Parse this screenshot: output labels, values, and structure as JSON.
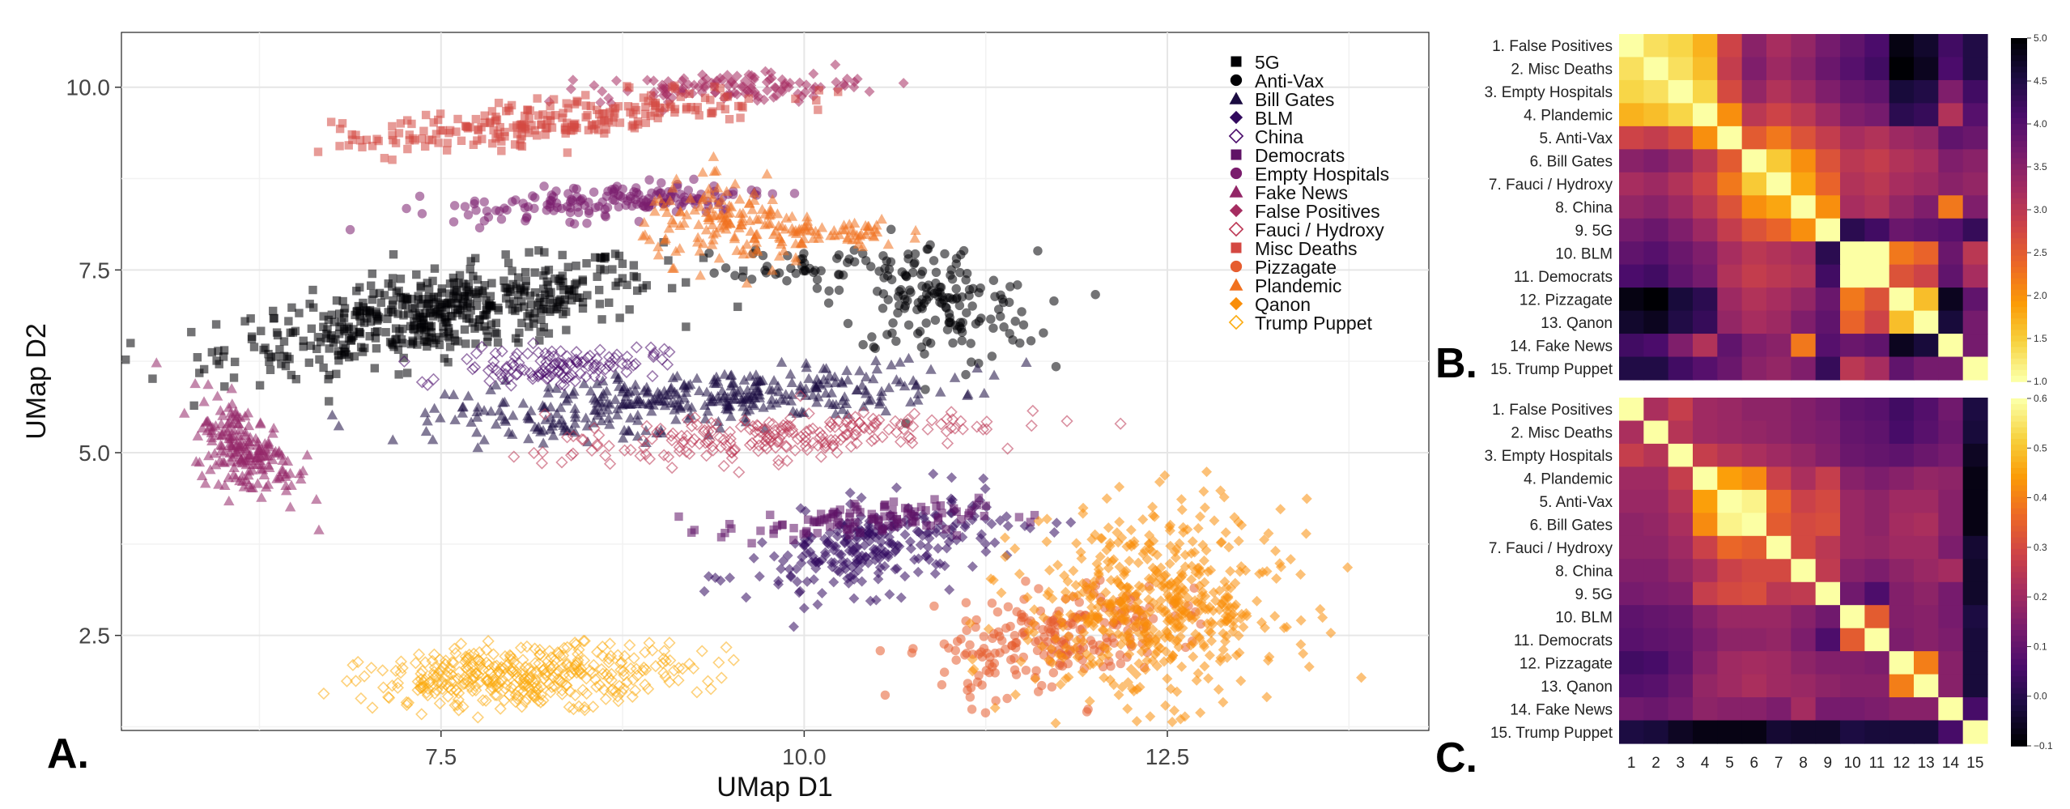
{
  "panel_labels": {
    "a": "A.",
    "b": "B.",
    "c": "C."
  },
  "chart_data": [
    {
      "type": "scatter",
      "xlabel": "UMap D1",
      "ylabel": "UMap D2",
      "xlim": [
        5.3,
        14.3
      ],
      "ylim": [
        1.2,
        10.75
      ],
      "xticks": [
        7.5,
        10.0,
        12.5
      ],
      "yticks": [
        2.5,
        5.0,
        7.5,
        10.0
      ],
      "xtick_labels": [
        "7.5",
        "10.0",
        "12.5"
      ],
      "ytick_labels": [
        "2.5",
        "5.0",
        "7.5",
        "10.0"
      ],
      "grid": true,
      "legend_position": "top-right",
      "series": [
        {
          "name": "5G",
          "marker": "square-filled",
          "color": "#000004",
          "clusters": [
            {
              "cx": 7.5,
              "cy": 6.9,
              "sx": 0.75,
              "sy": 0.28,
              "n": 520,
              "tilt": 0.32
            }
          ]
        },
        {
          "name": "Anti-Vax",
          "marker": "circle-filled",
          "color": "#000004",
          "clusters": [
            {
              "cx": 10.9,
              "cy": 7.05,
              "sx": 0.35,
              "sy": 0.42,
              "n": 170,
              "tilt": -0.2
            },
            {
              "cx": 10.0,
              "cy": 7.6,
              "sx": 0.25,
              "sy": 0.12,
              "n": 40,
              "tilt": 0
            }
          ]
        },
        {
          "name": "Bill Gates",
          "marker": "triangle-filled",
          "color": "#1b0c41",
          "clusters": [
            {
              "cx": 9.3,
              "cy": 5.75,
              "sx": 0.85,
              "sy": 0.18,
              "n": 320,
              "tilt": 0.12
            },
            {
              "cx": 8.3,
              "cy": 5.35,
              "sx": 0.4,
              "sy": 0.1,
              "n": 50,
              "tilt": 0
            }
          ]
        },
        {
          "name": "BLM",
          "marker": "diamond-filled",
          "color": "#320a5e",
          "clusters": [
            {
              "cx": 10.5,
              "cy": 3.7,
              "sx": 0.45,
              "sy": 0.3,
              "n": 260,
              "tilt": 0.35
            }
          ]
        },
        {
          "name": "China",
          "marker": "diamond-open",
          "color": "#4a0c6b",
          "clusters": [
            {
              "cx": 8.3,
              "cy": 6.2,
              "sx": 0.35,
              "sy": 0.12,
              "n": 120,
              "tilt": 0.1
            }
          ]
        },
        {
          "name": "Democrats",
          "marker": "square-filled",
          "color": "#5f1366",
          "clusters": [
            {
              "cx": 10.3,
              "cy": 4.05,
              "sx": 0.45,
              "sy": 0.12,
              "n": 110,
              "tilt": 0.1
            }
          ]
        },
        {
          "name": "Empty Hospitals",
          "marker": "circle-filled",
          "color": "#7a1d6d",
          "clusters": [
            {
              "cx": 8.7,
              "cy": 8.45,
              "sx": 0.55,
              "sy": 0.12,
              "n": 170,
              "tilt": 0.12
            }
          ]
        },
        {
          "name": "Fake News",
          "marker": "triangle-filled",
          "color": "#932667",
          "clusters": [
            {
              "cx": 6.15,
              "cy": 5.05,
              "sx": 0.18,
              "sy": 0.3,
              "n": 190,
              "tilt": -0.9
            }
          ]
        },
        {
          "name": "False Positives",
          "marker": "diamond-filled",
          "color": "#a52c60",
          "clusters": [
            {
              "cx": 9.5,
              "cy": 10.0,
              "sx": 0.45,
              "sy": 0.1,
              "n": 120,
              "tilt": 0.05
            }
          ]
        },
        {
          "name": "Fauci / Hydroxy",
          "marker": "diamond-open",
          "color": "#bc3754",
          "clusters": [
            {
              "cx": 9.7,
              "cy": 5.2,
              "sx": 0.75,
              "sy": 0.15,
              "n": 220,
              "tilt": 0.14
            }
          ]
        },
        {
          "name": "Misc Deaths",
          "marker": "square-filled",
          "color": "#d44842",
          "clusters": [
            {
              "cx": 8.3,
              "cy": 9.55,
              "sx": 0.75,
              "sy": 0.15,
              "n": 240,
              "tilt": 0.22
            }
          ]
        },
        {
          "name": "Pizzagate",
          "marker": "circle-filled",
          "color": "#e65d2f",
          "clusters": [
            {
              "cx": 11.7,
              "cy": 2.45,
              "sx": 0.4,
              "sy": 0.35,
              "n": 230,
              "tilt": 0.4
            }
          ]
        },
        {
          "name": "Plandemic",
          "marker": "triangle-filled",
          "color": "#f1711f",
          "clusters": [
            {
              "cx": 9.5,
              "cy": 8.1,
              "sx": 0.3,
              "sy": 0.28,
              "n": 140,
              "tilt": -0.2
            },
            {
              "cx": 10.2,
              "cy": 8.0,
              "sx": 0.25,
              "sy": 0.1,
              "n": 60,
              "tilt": 0
            }
          ]
        },
        {
          "name": "Qanon",
          "marker": "diamond-filled",
          "color": "#f98e09",
          "clusters": [
            {
              "cx": 12.4,
              "cy": 2.9,
              "sx": 0.45,
              "sy": 0.65,
              "n": 520,
              "tilt": 0.1
            }
          ]
        },
        {
          "name": "Trump Puppet",
          "marker": "diamond-open",
          "color": "#fcac11",
          "clusters": [
            {
              "cx": 8.1,
              "cy": 1.95,
              "sx": 0.55,
              "sy": 0.2,
              "n": 380,
              "tilt": 0.08
            }
          ]
        }
      ]
    },
    {
      "type": "heatmap",
      "row_labels": [
        "1. False Positives",
        "2. Misc Deaths",
        "3. Empty Hospitals",
        "4. Plandemic",
        "5. Anti-Vax",
        "6. Bill Gates",
        "7. Fauci / Hydroxy",
        "8. China",
        "9. 5G",
        "10. BLM",
        "11. Democrats",
        "12. Pizzagate",
        "13. Qanon",
        "14. Fake News",
        "15. Trump Puppet"
      ],
      "col_labels": [],
      "colormap": "inferno_reversed",
      "vmin": 1.0,
      "vmax": 5.0,
      "colorbar_ticks": [
        1.0,
        1.5,
        2.0,
        2.5,
        3.0,
        3.5,
        4.0,
        4.5,
        5.0
      ],
      "colorbar_tick_labels": [
        "1.0",
        "1.5",
        "2.0",
        "2.5",
        "3.0",
        "3.5",
        "4.0",
        "4.5",
        "5.0"
      ],
      "values": [
        [
          1.0,
          1.3,
          1.4,
          1.7,
          2.8,
          3.5,
          3.2,
          3.4,
          3.7,
          3.9,
          4.1,
          4.9,
          4.7,
          4.2,
          4.5
        ],
        [
          1.3,
          1.0,
          1.3,
          1.6,
          2.9,
          3.6,
          3.3,
          3.5,
          3.8,
          4.0,
          4.2,
          5.0,
          4.8,
          4.1,
          4.5
        ],
        [
          1.4,
          1.3,
          1.0,
          1.4,
          2.7,
          3.4,
          3.1,
          3.3,
          3.6,
          3.8,
          3.9,
          4.6,
          4.5,
          3.6,
          4.2
        ],
        [
          1.7,
          1.6,
          1.4,
          1.0,
          2.0,
          3.0,
          2.8,
          3.0,
          3.3,
          3.6,
          3.7,
          4.4,
          4.3,
          3.1,
          4.0
        ],
        [
          2.8,
          2.9,
          2.7,
          2.0,
          1.0,
          2.5,
          2.2,
          2.6,
          2.9,
          3.2,
          3.1,
          3.3,
          3.4,
          3.9,
          3.8
        ],
        [
          3.5,
          3.6,
          3.4,
          3.0,
          2.5,
          1.0,
          1.5,
          2.0,
          2.6,
          3.0,
          2.9,
          3.1,
          3.2,
          3.6,
          3.5
        ],
        [
          3.2,
          3.3,
          3.1,
          2.8,
          2.2,
          1.5,
          1.0,
          1.8,
          2.4,
          3.1,
          3.0,
          3.2,
          3.3,
          3.5,
          3.4
        ],
        [
          3.4,
          3.5,
          3.3,
          3.0,
          2.6,
          2.0,
          1.8,
          1.0,
          2.0,
          3.2,
          3.1,
          3.4,
          3.6,
          2.2,
          3.6
        ],
        [
          3.7,
          3.8,
          3.6,
          3.3,
          2.9,
          2.6,
          2.4,
          2.0,
          1.0,
          4.4,
          4.2,
          3.8,
          3.9,
          4.0,
          4.3
        ],
        [
          3.9,
          4.0,
          3.8,
          3.6,
          3.2,
          3.0,
          3.1,
          3.2,
          4.4,
          1.0,
          1.0,
          2.2,
          2.4,
          3.8,
          3.0
        ],
        [
          4.1,
          4.2,
          3.9,
          3.7,
          3.1,
          2.9,
          3.0,
          3.1,
          4.2,
          1.0,
          1.0,
          2.6,
          2.8,
          3.9,
          3.2
        ],
        [
          4.9,
          5.0,
          4.6,
          4.4,
          3.3,
          3.1,
          3.2,
          3.4,
          3.8,
          2.2,
          2.6,
          1.0,
          1.6,
          4.8,
          3.9
        ],
        [
          4.7,
          4.8,
          4.5,
          4.3,
          3.4,
          3.2,
          3.3,
          3.6,
          3.9,
          2.4,
          2.8,
          1.6,
          1.0,
          4.6,
          3.7
        ],
        [
          4.2,
          4.1,
          3.6,
          3.1,
          3.9,
          3.6,
          3.5,
          2.2,
          4.0,
          3.8,
          3.9,
          4.8,
          4.6,
          1.0,
          3.7
        ],
        [
          4.5,
          4.5,
          4.2,
          4.0,
          3.8,
          3.5,
          3.4,
          3.6,
          4.3,
          3.0,
          3.2,
          3.9,
          3.7,
          3.7,
          1.0
        ]
      ]
    },
    {
      "type": "heatmap",
      "row_labels": [
        "1. False Positives",
        "2. Misc Deaths",
        "3. Empty Hospitals",
        "4. Plandemic",
        "5. Anti-Vax",
        "6. Bill Gates",
        "7. Fauci / Hydroxy",
        "8. China",
        "9. 5G",
        "10. BLM",
        "11. Democrats",
        "12. Pizzagate",
        "13. Qanon",
        "14. Fake News",
        "15. Trump Puppet"
      ],
      "col_labels": [
        "1",
        "2",
        "3",
        "4",
        "5",
        "6",
        "7",
        "8",
        "9",
        "10",
        "11",
        "12",
        "13",
        "14",
        "15"
      ],
      "colormap": "inferno",
      "vmin": -0.1,
      "vmax": 0.6,
      "colorbar_ticks": [
        -0.1,
        0.0,
        0.1,
        0.2,
        0.3,
        0.4,
        0.5,
        0.6
      ],
      "colorbar_tick_labels": [
        "−0.1",
        "0.0",
        "0.1",
        "0.2",
        "0.3",
        "0.4",
        "0.5",
        "0.6"
      ],
      "values": [
        [
          0.6,
          0.22,
          0.27,
          0.2,
          0.19,
          0.17,
          0.17,
          0.15,
          0.13,
          0.09,
          0.08,
          0.04,
          0.07,
          0.12,
          -0.02
        ],
        [
          0.22,
          0.6,
          0.24,
          0.2,
          0.19,
          0.18,
          0.17,
          0.15,
          0.14,
          0.1,
          0.09,
          0.05,
          0.08,
          0.11,
          -0.03
        ],
        [
          0.27,
          0.24,
          0.6,
          0.27,
          0.24,
          0.22,
          0.2,
          0.18,
          0.15,
          0.11,
          0.1,
          0.09,
          0.11,
          0.13,
          -0.06
        ],
        [
          0.2,
          0.2,
          0.27,
          0.6,
          0.45,
          0.42,
          0.28,
          0.22,
          0.27,
          0.16,
          0.14,
          0.16,
          0.18,
          0.17,
          -0.08
        ],
        [
          0.19,
          0.19,
          0.24,
          0.45,
          0.6,
          0.58,
          0.36,
          0.28,
          0.3,
          0.19,
          0.17,
          0.2,
          0.2,
          0.16,
          -0.08
        ],
        [
          0.17,
          0.18,
          0.22,
          0.42,
          0.58,
          0.6,
          0.34,
          0.3,
          0.31,
          0.19,
          0.17,
          0.21,
          0.22,
          0.16,
          -0.08
        ],
        [
          0.17,
          0.17,
          0.2,
          0.28,
          0.36,
          0.34,
          0.6,
          0.3,
          0.25,
          0.19,
          0.18,
          0.2,
          0.2,
          0.14,
          -0.04
        ],
        [
          0.15,
          0.15,
          0.18,
          0.22,
          0.28,
          0.3,
          0.3,
          0.6,
          0.26,
          0.16,
          0.14,
          0.17,
          0.19,
          0.21,
          -0.05
        ],
        [
          0.13,
          0.14,
          0.15,
          0.27,
          0.3,
          0.31,
          0.25,
          0.26,
          0.6,
          0.12,
          0.06,
          0.15,
          0.17,
          0.13,
          -0.05
        ],
        [
          0.09,
          0.1,
          0.11,
          0.16,
          0.19,
          0.19,
          0.19,
          0.16,
          0.12,
          0.6,
          0.34,
          0.15,
          0.16,
          0.13,
          -0.02
        ],
        [
          0.08,
          0.09,
          0.1,
          0.14,
          0.17,
          0.17,
          0.18,
          0.14,
          0.06,
          0.34,
          0.6,
          0.14,
          0.16,
          0.14,
          -0.03
        ],
        [
          0.04,
          0.05,
          0.09,
          0.16,
          0.2,
          0.21,
          0.2,
          0.17,
          0.15,
          0.15,
          0.14,
          0.6,
          0.4,
          0.16,
          -0.03
        ],
        [
          0.07,
          0.08,
          0.11,
          0.18,
          0.2,
          0.22,
          0.2,
          0.19,
          0.17,
          0.16,
          0.16,
          0.4,
          0.6,
          0.16,
          -0.03
        ],
        [
          0.12,
          0.11,
          0.13,
          0.17,
          0.16,
          0.16,
          0.14,
          0.21,
          0.13,
          0.13,
          0.14,
          0.16,
          0.16,
          0.6,
          0.05
        ],
        [
          -0.02,
          -0.03,
          -0.06,
          -0.08,
          -0.08,
          -0.08,
          -0.04,
          -0.05,
          -0.05,
          -0.02,
          -0.03,
          -0.03,
          -0.03,
          0.05,
          0.6
        ]
      ]
    }
  ]
}
